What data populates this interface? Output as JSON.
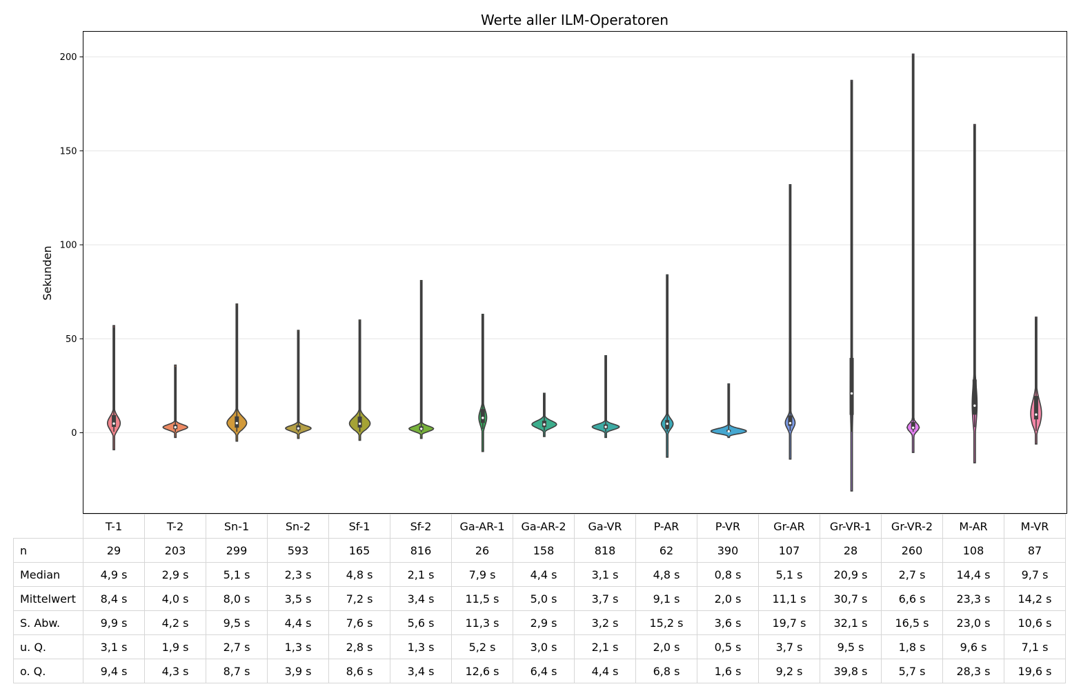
{
  "chart_data": {
    "type": "violin",
    "title": "Werte aller ILM-Operatoren",
    "ylabel": "Sekunden",
    "xlabel": "",
    "ylim": [
      -43,
      213
    ],
    "yticks": [
      0,
      50,
      100,
      150,
      200
    ],
    "grid": "horizontal",
    "categories": [
      "T-1",
      "T-2",
      "Sn-1",
      "Sn-2",
      "Sf-1",
      "Sf-2",
      "Ga-AR-1",
      "Ga-AR-2",
      "Ga-VR",
      "P-AR",
      "P-VR",
      "Gr-AR",
      "Gr-VR-1",
      "Gr-VR-2",
      "M-AR",
      "M-VR"
    ],
    "colors": [
      "#f0838b",
      "#ed8a63",
      "#d29a3a",
      "#b49f45",
      "#a5a335",
      "#78b33b",
      "#38ab5f",
      "#3cad8c",
      "#3daba4",
      "#3ca9b8",
      "#45a7d0",
      "#7c9ce8",
      "#b68ded",
      "#e27ff0",
      "#f07ac3",
      "#f487a7"
    ],
    "n": [
      29,
      203,
      299,
      593,
      165,
      816,
      26,
      158,
      818,
      62,
      390,
      107,
      28,
      260,
      108,
      87
    ],
    "min": [
      0.5,
      0.3,
      0.5,
      0.3,
      0.5,
      0.3,
      2.0,
      1.0,
      0.4,
      0.5,
      0.2,
      1.0,
      0.5,
      0.5,
      3.0,
      1.0
    ],
    "max": [
      56,
      35,
      68,
      54,
      59.5,
      80.5,
      62.5,
      20.5,
      40.5,
      83.5,
      25.5,
      131.5,
      187,
      201,
      163.5,
      61
    ],
    "median": [
      4.9,
      2.9,
      5.1,
      2.3,
      4.8,
      2.1,
      7.9,
      4.4,
      3.1,
      4.8,
      0.8,
      5.1,
      20.9,
      2.7,
      14.4,
      9.7
    ],
    "mean": [
      8.4,
      4.0,
      8.0,
      3.5,
      7.2,
      3.4,
      11.5,
      5.0,
      3.7,
      9.1,
      2.0,
      11.1,
      30.7,
      6.6,
      23.3,
      14.2
    ],
    "sd": [
      9.9,
      4.2,
      9.5,
      4.4,
      7.6,
      5.6,
      11.3,
      2.9,
      3.2,
      15.2,
      3.6,
      19.7,
      32.1,
      16.5,
      23.0,
      10.6
    ],
    "q1": [
      3.1,
      1.9,
      2.7,
      1.3,
      2.8,
      1.3,
      5.2,
      3.0,
      2.1,
      2.0,
      0.5,
      3.7,
      9.5,
      1.8,
      9.6,
      7.1
    ],
    "q3": [
      9.4,
      4.3,
      8.7,
      3.9,
      8.6,
      3.4,
      12.6,
      6.4,
      4.4,
      6.8,
      1.6,
      9.2,
      39.8,
      5.7,
      28.3,
      19.6
    ],
    "kde_low": [
      -9,
      -2.5,
      -4.5,
      -3,
      -4,
      -3,
      -10,
      -2,
      -2.5,
      -13,
      -2.5,
      -14,
      -31,
      -10.5,
      -16,
      -6
    ],
    "kde_high": [
      57,
      36,
      68.5,
      54.5,
      60,
      81,
      63,
      21,
      41,
      84,
      26,
      132,
      187.5,
      201.5,
      164,
      61.5
    ],
    "violin_width": [
      0.26,
      0.5,
      0.4,
      0.52,
      0.42,
      0.5,
      0.16,
      0.5,
      0.55,
      0.24,
      0.72,
      0.2,
      0.06,
      0.25,
      0.1,
      0.22
    ]
  },
  "table": {
    "headers": [
      "T-1",
      "T-2",
      "Sn-1",
      "Sn-2",
      "Sf-1",
      "Sf-2",
      "Ga-AR-1",
      "Ga-AR-2",
      "Ga-VR",
      "P-AR",
      "P-VR",
      "Gr-AR",
      "Gr-VR-1",
      "Gr-VR-2",
      "M-AR",
      "M-VR"
    ],
    "rows": [
      {
        "label": "n",
        "cells": [
          "29",
          "203",
          "299",
          "593",
          "165",
          "816",
          "26",
          "158",
          "818",
          "62",
          "390",
          "107",
          "28",
          "260",
          "108",
          "87"
        ]
      },
      {
        "label": "Median",
        "cells": [
          "4,9 s",
          "2,9 s",
          "5,1 s",
          "2,3 s",
          "4,8 s",
          "2,1 s",
          "7,9 s",
          "4,4 s",
          "3,1 s",
          "4,8 s",
          "0,8 s",
          "5,1 s",
          "20,9 s",
          "2,7 s",
          "14,4 s",
          "9,7 s"
        ]
      },
      {
        "label": "Mittelwert",
        "cells": [
          "8,4 s",
          "4,0 s",
          "8,0 s",
          "3,5 s",
          "7,2 s",
          "3,4 s",
          "11,5 s",
          "5,0 s",
          "3,7 s",
          "9,1 s",
          "2,0 s",
          "11,1 s",
          "30,7 s",
          "6,6 s",
          "23,3 s",
          "14,2 s"
        ]
      },
      {
        "label": "S. Abw.",
        "cells": [
          "9,9 s",
          "4,2 s",
          "9,5 s",
          "4,4 s",
          "7,6 s",
          "5,6 s",
          "11,3 s",
          "2,9 s",
          "3,2 s",
          "15,2 s",
          "3,6 s",
          "19,7 s",
          "32,1 s",
          "16,5 s",
          "23,0 s",
          "10,6 s"
        ]
      },
      {
        "label": "u. Q.",
        "cells": [
          "3,1 s",
          "1,9 s",
          "2,7 s",
          "1,3 s",
          "2,8 s",
          "1,3 s",
          "5,2 s",
          "3,0 s",
          "2,1 s",
          "2,0 s",
          "0,5 s",
          "3,7 s",
          "9,5 s",
          "1,8 s",
          "9,6 s",
          "7,1 s"
        ]
      },
      {
        "label": "o. Q.",
        "cells": [
          "9,4 s",
          "4,3 s",
          "8,7 s",
          "3,9 s",
          "8,6 s",
          "3,4 s",
          "12,6 s",
          "6,4 s",
          "4,4 s",
          "6,8 s",
          "1,6 s",
          "9,2 s",
          "39,8 s",
          "5,7 s",
          "28,3 s",
          "19,6 s"
        ]
      }
    ]
  }
}
